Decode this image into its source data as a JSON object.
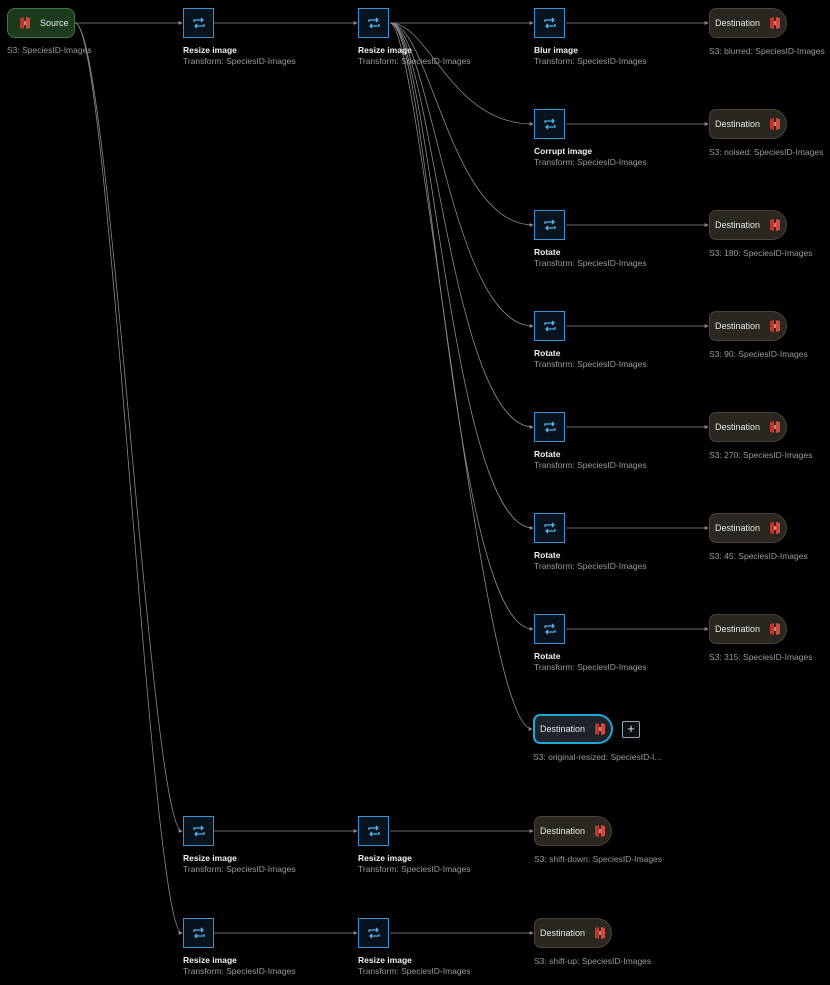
{
  "flow": {
    "source": {
      "label": "Source",
      "caption": "S3: SpeciesID-Images",
      "icon": "s3-bucket-icon"
    },
    "transform_icon": "transform-cycle-icon",
    "colors": {
      "background": "#000000",
      "source_fill": "#1c3a1c",
      "source_border": "#3f7a3c",
      "transform_border": "#3596d5",
      "destination_fill": "#2a2620",
      "selected_border": "#1ea7d8",
      "s3_icon": "#d1493b",
      "edge": "#8a8a8a"
    },
    "transforms": {
      "r1": {
        "title": "Resize image",
        "subtitle": "Transform: SpeciesID-Images"
      },
      "r2": {
        "title": "Resize image",
        "subtitle": "Transform: SpeciesID-Images"
      },
      "blur": {
        "title": "Blur image",
        "subtitle": "Transform: SpeciesID-Images"
      },
      "corrupt": {
        "title": "Corrupt image",
        "subtitle": "Transform: SpeciesID-Images"
      },
      "rot1": {
        "title": "Rotate",
        "subtitle": "Transform: SpeciesID-Images"
      },
      "rot2": {
        "title": "Rotate",
        "subtitle": "Transform: SpeciesID-Images"
      },
      "rot3": {
        "title": "Rotate",
        "subtitle": "Transform: SpeciesID-Images"
      },
      "rot4": {
        "title": "Rotate",
        "subtitle": "Transform: SpeciesID-Images"
      },
      "rot5": {
        "title": "Rotate",
        "subtitle": "Transform: SpeciesID-Images"
      },
      "r3": {
        "title": "Resize image",
        "subtitle": "Transform: SpeciesID-Images"
      },
      "r4": {
        "title": "Resize image",
        "subtitle": "Transform: SpeciesID-Images"
      },
      "r5": {
        "title": "Resize image",
        "subtitle": "Transform: SpeciesID-Images"
      },
      "r6": {
        "title": "Resize image",
        "subtitle": "Transform: SpeciesID-Images"
      }
    },
    "destinations": {
      "d_blur": {
        "label": "Destination",
        "caption": "S3: blurred: SpeciesID-Images"
      },
      "d_noised": {
        "label": "Destination",
        "caption": "S3: noised: SpeciesID-Images"
      },
      "d_180": {
        "label": "Destination",
        "caption": "S3: 180: SpeciesID-Images"
      },
      "d_90": {
        "label": "Destination",
        "caption": "S3: 90: SpeciesID-Images"
      },
      "d_270": {
        "label": "Destination",
        "caption": "S3: 270: SpeciesID-Images"
      },
      "d_45": {
        "label": "Destination",
        "caption": "S3: 45: SpeciesID-Images"
      },
      "d_315": {
        "label": "Destination",
        "caption": "S3: 315: SpeciesID-Images"
      },
      "d_orig": {
        "label": "Destination",
        "caption": "S3: original-resized: SpeciesID-I...",
        "selected": true
      },
      "d_down": {
        "label": "Destination",
        "caption": "S3: shift-down: SpeciesID-Images"
      },
      "d_up": {
        "label": "Destination",
        "caption": "S3: shift-up: SpeciesID-Images"
      }
    },
    "add_button": {
      "label": "+"
    }
  }
}
